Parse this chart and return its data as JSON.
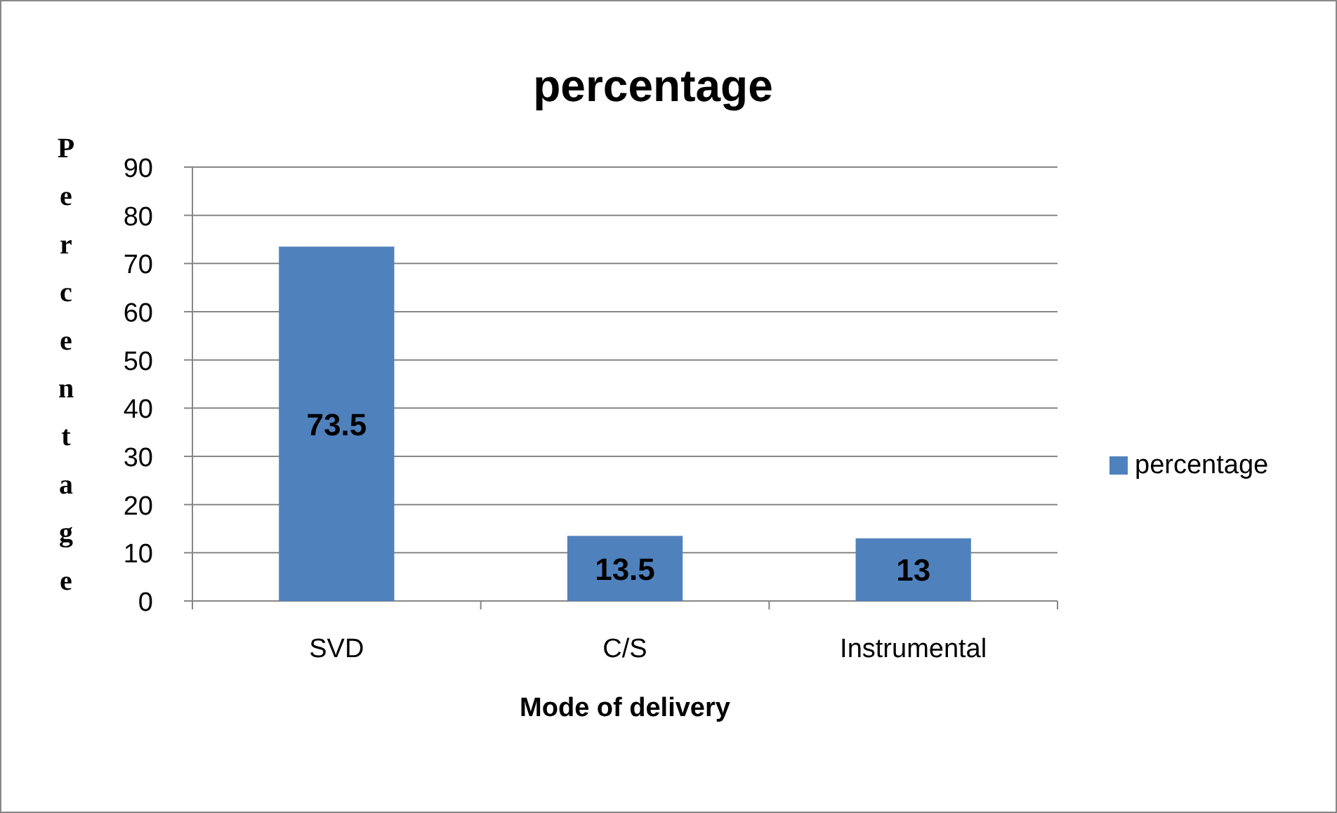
{
  "chart_data": {
    "type": "bar",
    "title": "percentage",
    "xlabel": "Mode of delivery",
    "ylabel": "Percentage",
    "categories": [
      "SVD",
      "C/S",
      "Instrumental"
    ],
    "series": [
      {
        "name": "percentage",
        "color": "#4f81bd",
        "values": [
          73.5,
          13.5,
          13
        ]
      }
    ],
    "ylim": [
      0,
      90
    ],
    "yticks": [
      0,
      10,
      20,
      30,
      40,
      50,
      60,
      70,
      80,
      90
    ],
    "grid": "y",
    "legend": "right",
    "data_labels": true
  }
}
